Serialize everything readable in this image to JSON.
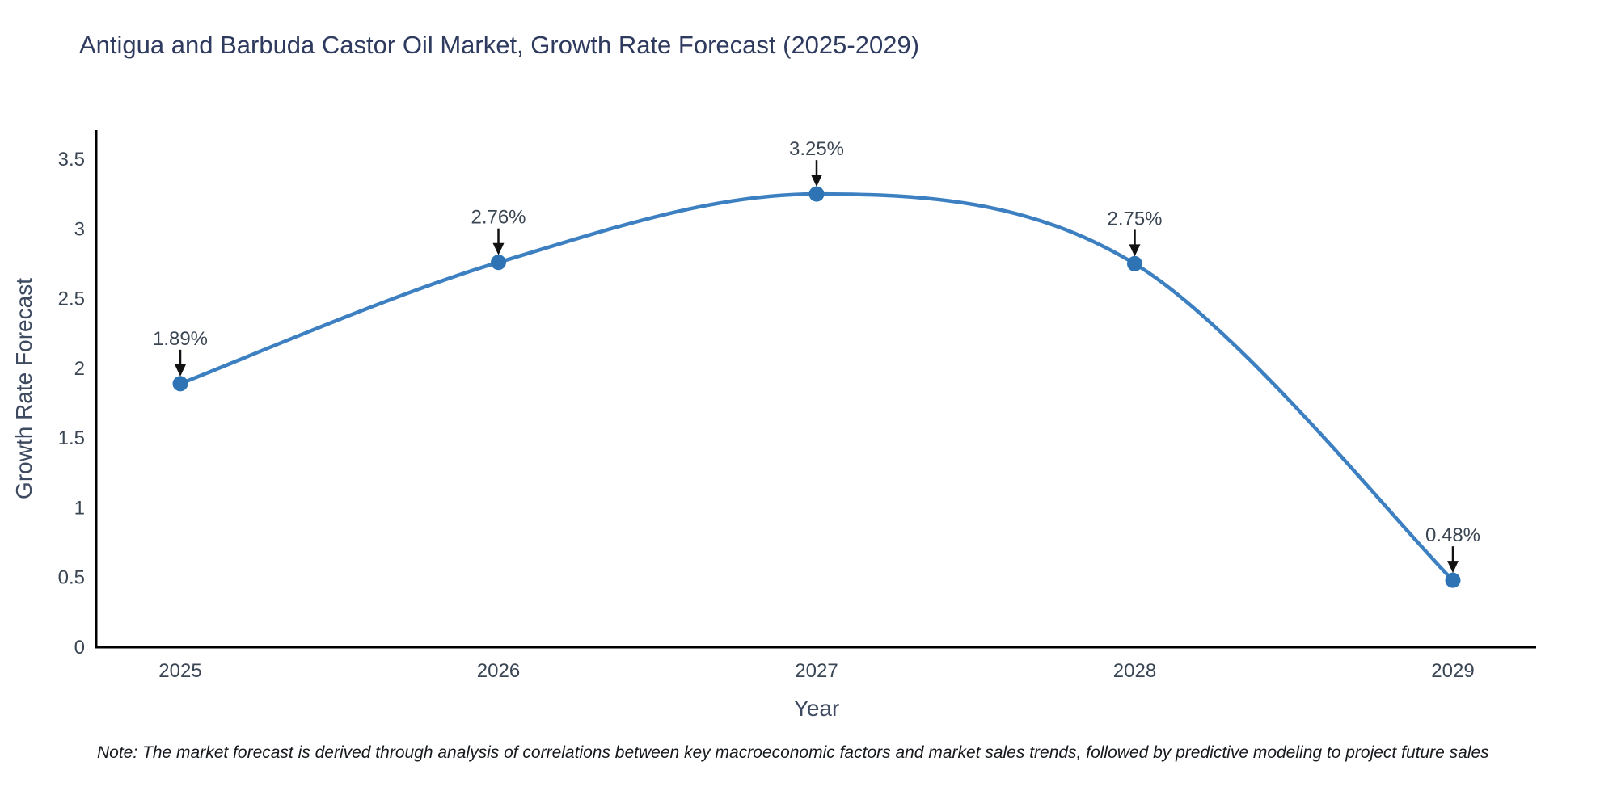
{
  "title": "Antigua and Barbuda Castor Oil Market, Growth Rate Forecast (2025-2029)",
  "note": "Note: The market forecast is derived through analysis of correlations between key macroeconomic factors and market sales trends, followed by predictive modeling to project future sales",
  "chart_data": {
    "type": "line",
    "line_shape": "spline",
    "x": [
      "2025",
      "2026",
      "2027",
      "2028",
      "2029"
    ],
    "values": [
      1.89,
      2.76,
      3.25,
      2.75,
      0.48
    ],
    "point_labels": [
      "1.89%",
      "2.76%",
      "3.25%",
      "2.75%",
      "0.48%"
    ],
    "title": "Antigua and Barbuda Castor Oil Market, Growth Rate Forecast (2025-2029)",
    "xlabel": "Year",
    "ylabel": "Growth Rate Forecast",
    "ylim": [
      0,
      3.5
    ],
    "yticks": [
      "0",
      "0.5",
      "1",
      "1.5",
      "2",
      "2.5",
      "3",
      "3.5"
    ],
    "grid": false,
    "legend": "none",
    "annotation_style": "value label with downward arrow to marker",
    "colors": {
      "line": "#3d80c2",
      "marker": "#2e74b5",
      "arrow": "#111111",
      "axis": "#000000",
      "tick_label": "#3b4654",
      "annotation_text": "#3b4654"
    }
  }
}
